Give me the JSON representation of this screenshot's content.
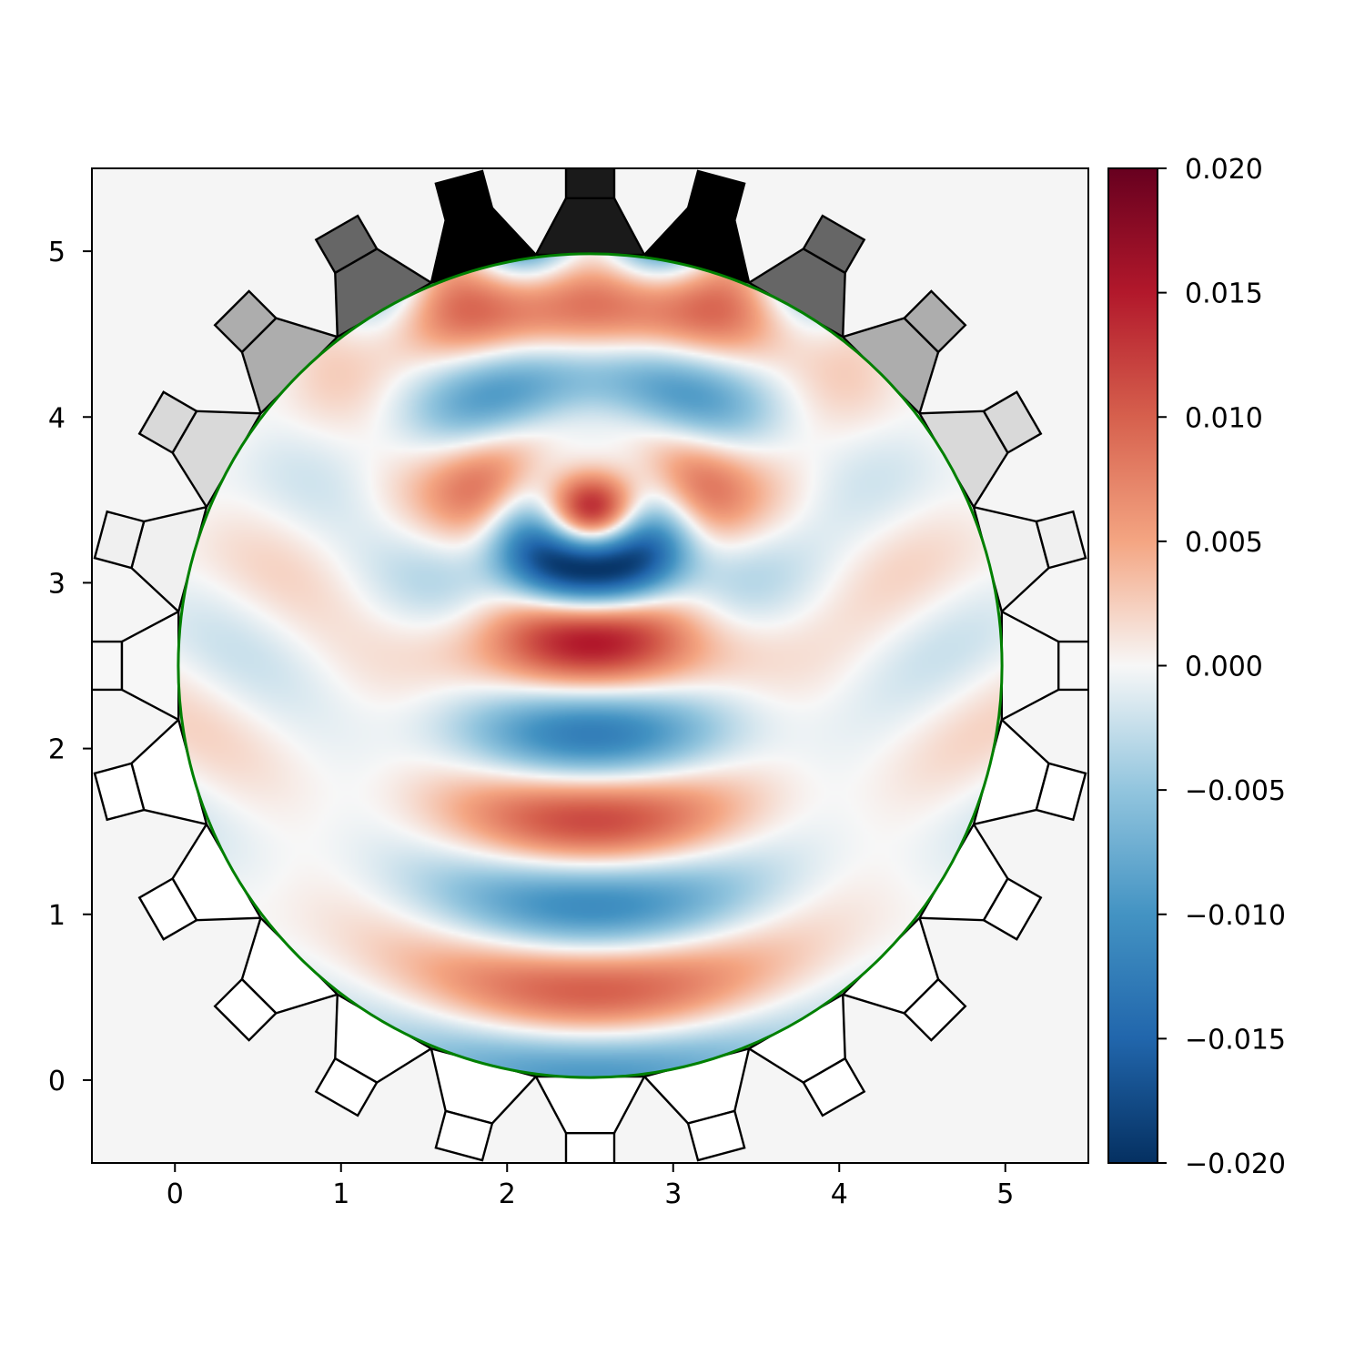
{
  "chart_data": {
    "type": "heatmap",
    "title": "",
    "xlabel": "",
    "ylabel": "",
    "xlim": [
      -0.5,
      5.5
    ],
    "ylim": [
      -0.5,
      5.5
    ],
    "grid": false,
    "x_ticks": [
      0,
      1,
      2,
      3,
      4,
      5
    ],
    "x_tick_labels": [
      "0",
      "1",
      "2",
      "3",
      "4",
      "5"
    ],
    "y_ticks": [
      0,
      1,
      2,
      3,
      4,
      5
    ],
    "y_tick_labels": [
      "0",
      "1",
      "2",
      "3",
      "4",
      "5"
    ],
    "field": {
      "domain": "circle",
      "center": [
        2.5,
        2.5
      ],
      "radius": 2.48,
      "description": "wave interference pattern inside circular domain"
    },
    "colorbar": {
      "cmap": "RdBu_r",
      "vmin": -0.02,
      "vmax": 0.02,
      "ticks": [
        0.02,
        0.015,
        0.01,
        0.005,
        0.0,
        -0.005,
        -0.01,
        -0.015,
        -0.02
      ],
      "tick_labels": [
        "0.020",
        "0.015",
        "0.010",
        "0.005",
        "0.000",
        "−0.005",
        "−0.010",
        "−0.015",
        "−0.020"
      ]
    },
    "transducers": {
      "count": 24,
      "center": [
        2.5,
        2.5
      ],
      "description": "ring of trapezoidal transducer elements, shaded by activation (dark = high, white = low)",
      "angles_deg": [
        90,
        105,
        120,
        135,
        150,
        165,
        180,
        195,
        210,
        225,
        240,
        255,
        270,
        285,
        300,
        315,
        330,
        345,
        0,
        15,
        30,
        45,
        60,
        75
      ],
      "activation": [
        0.9,
        1.0,
        0.6,
        0.32,
        0.15,
        0.06,
        0.03,
        0.0,
        0.0,
        0.0,
        0.0,
        0.0,
        0.0,
        0.0,
        0.0,
        0.0,
        0.0,
        0.0,
        0.03,
        0.06,
        0.15,
        0.32,
        0.6,
        1.0
      ]
    },
    "overlay_circle_color": "#008000",
    "colors": {
      "background": "#f5f5f5",
      "outline": "#000000"
    }
  }
}
